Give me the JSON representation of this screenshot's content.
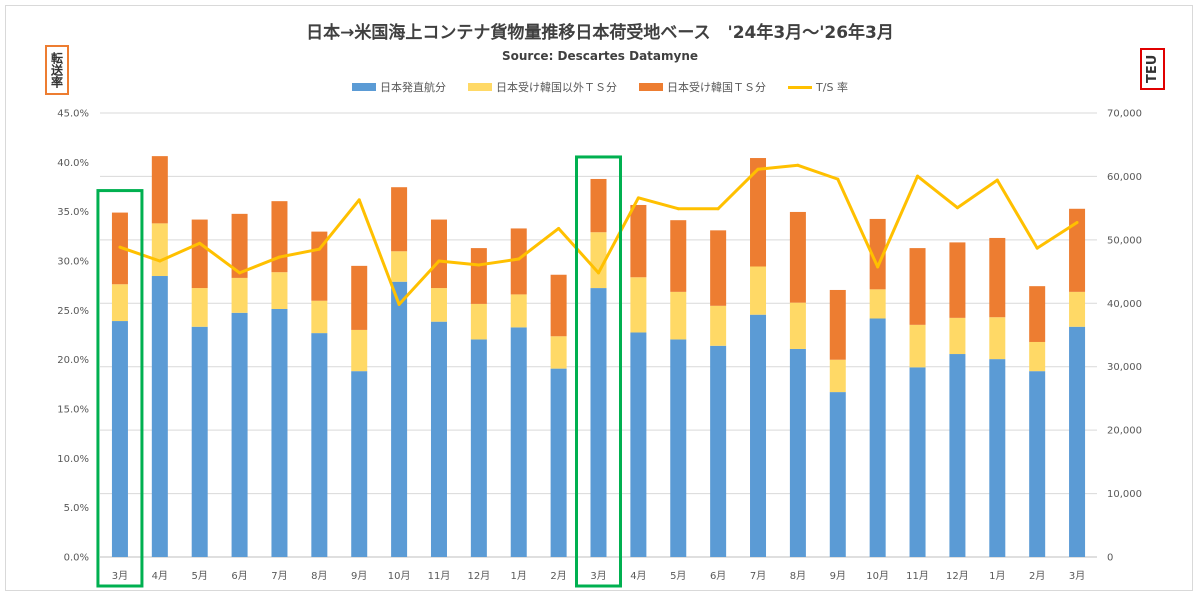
{
  "chart_data": {
    "type": "bar",
    "stacked": true,
    "title": "日本→米国海上コンテナ貨物量推移日本荷受地ベース　'24年3月～'26年3月",
    "subtitle": "Source: Descartes Datamyne",
    "ylabel_left": "転送率",
    "ylabel_right": "TEU",
    "ylim_left": [
      0,
      45
    ],
    "ylim_right": [
      0,
      70000
    ],
    "left_ticks": [
      "0.0%",
      "5.0%",
      "10.0%",
      "15.0%",
      "20.0%",
      "25.0%",
      "30.0%",
      "35.0%",
      "40.0%",
      "45.0%"
    ],
    "right_ticks": [
      "0",
      "10,000",
      "20,000",
      "30,000",
      "40,000",
      "50,000",
      "60,000",
      "70,000"
    ],
    "grid": true,
    "legend_position": "top",
    "categories": [
      "3月",
      "4月",
      "5月",
      "6月",
      "7月",
      "8月",
      "9月",
      "10月",
      "11月",
      "12月",
      "1月",
      "2月",
      "3月",
      "4月",
      "5月",
      "6月",
      "7月",
      "8月",
      "9月",
      "10月",
      "11月",
      "12月",
      "1月",
      "2月",
      "3月"
    ],
    "highlighted_categories": [
      0,
      12
    ],
    "series": [
      {
        "name": "日本発直航分",
        "kind": "bar",
        "axis": "right",
        "color": "#5b9bd5",
        "values": [
          37200,
          44300,
          36300,
          38500,
          39100,
          35300,
          29300,
          43400,
          37100,
          34300,
          36200,
          29700,
          42400,
          35400,
          34300,
          33300,
          38200,
          32800,
          26000,
          37600,
          29900,
          32000,
          31200,
          29300,
          36300
        ]
      },
      {
        "name": "日本受け韓国以外ＴＳ分",
        "kind": "bar",
        "axis": "right",
        "color": "#ffd966",
        "values": [
          5800,
          8300,
          6100,
          5500,
          5800,
          5100,
          6500,
          4800,
          5300,
          5600,
          5200,
          5100,
          8800,
          8700,
          7500,
          6300,
          7600,
          7300,
          5100,
          4600,
          6700,
          5700,
          6600,
          4600,
          5500
        ]
      },
      {
        "name": "日本受け韓国ＴＳ分",
        "kind": "bar",
        "axis": "right",
        "color": "#ed7d31",
        "values": [
          11300,
          10600,
          10800,
          10100,
          11200,
          10900,
          10100,
          10100,
          10800,
          8800,
          10400,
          9700,
          8400,
          11400,
          11300,
          11900,
          17100,
          14300,
          11000,
          11100,
          12100,
          11900,
          12500,
          8800,
          13100
        ]
      },
      {
        "name": "T/S 率",
        "kind": "line",
        "axis": "left",
        "color": "#ffc000",
        "values": [
          31.4,
          30.0,
          31.8,
          28.8,
          30.4,
          31.2,
          36.2,
          25.6,
          30.0,
          29.6,
          30.2,
          33.3,
          28.8,
          36.4,
          35.3,
          35.3,
          39.3,
          39.7,
          38.3,
          29.4,
          38.6,
          35.4,
          38.2,
          31.3,
          33.9
        ]
      }
    ],
    "colors": {
      "highlight_box": "#00b050",
      "grid": "#d9d9d9"
    }
  }
}
